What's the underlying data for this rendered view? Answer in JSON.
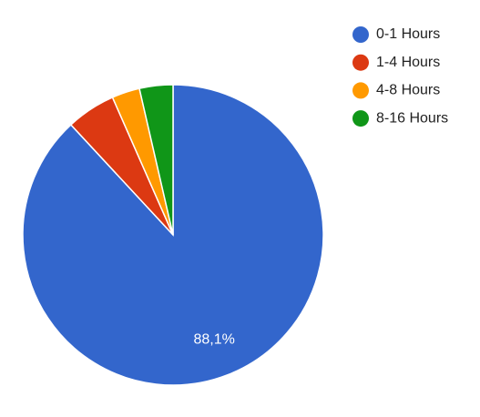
{
  "chart_data": {
    "type": "pie",
    "categories": [
      "0-1 Hours",
      "1-4 Hours",
      "4-8 Hours",
      "8-16 Hours"
    ],
    "values": [
      88.1,
      5.3,
      3.0,
      3.6
    ],
    "value_labels": [
      "88,1%",
      null,
      null,
      null
    ],
    "colors": [
      "#3366cc",
      "#dc3912",
      "#ff9900",
      "#109618"
    ],
    "legend": "right"
  }
}
